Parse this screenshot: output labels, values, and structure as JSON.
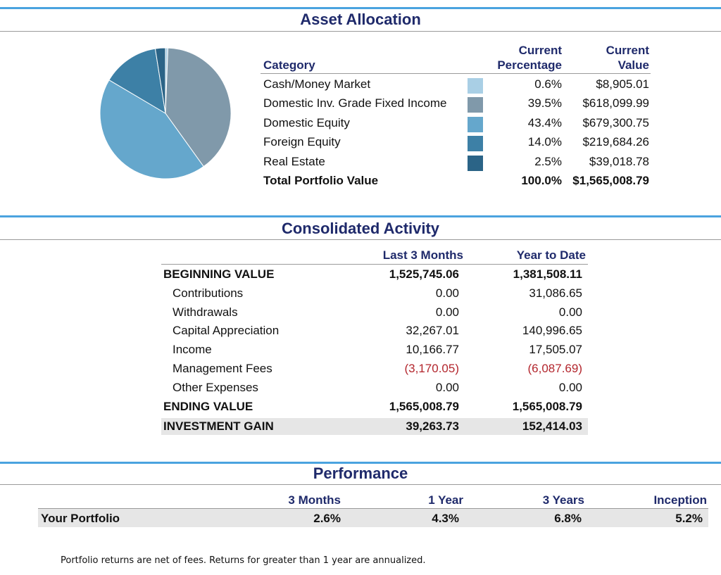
{
  "asset_allocation": {
    "title": "Asset Allocation",
    "headers": {
      "category": "Category",
      "percentage_line1": "Current",
      "percentage_line2": "Percentage",
      "value_line1": "Current",
      "value_line2": "Value"
    },
    "rows": [
      {
        "category": "Cash/Money Market",
        "percentage": "0.6%",
        "value": "$8,905.01",
        "color": "#a9cfe5",
        "share": 0.6
      },
      {
        "category": "Domestic Inv. Grade Fixed Income",
        "percentage": "39.5%",
        "value": "$618,099.99",
        "color": "#8099aa",
        "share": 39.5
      },
      {
        "category": "Domestic Equity",
        "percentage": "43.4%",
        "value": "$679,300.75",
        "color": "#65a7cc",
        "share": 43.4
      },
      {
        "category": "Foreign Equity",
        "percentage": "14.0%",
        "value": "$219,684.26",
        "color": "#3d80a6",
        "share": 14.0
      },
      {
        "category": "Real Estate",
        "percentage": "2.5%",
        "value": "$39,018.78",
        "color": "#2b6487",
        "share": 2.5
      }
    ],
    "total": {
      "label": "Total Portfolio Value",
      "percentage": "100.0%",
      "value": "$1,565,008.79"
    }
  },
  "consolidated_activity": {
    "title": "Consolidated Activity",
    "col1": "Last 3 Months",
    "col2": "Year to Date",
    "rows": [
      {
        "label": "BEGINNING VALUE",
        "v1": "1,525,745.06",
        "v2": "1,381,508.11"
      },
      {
        "label": "Contributions",
        "v1": "0.00",
        "v2": "31,086.65"
      },
      {
        "label": "Withdrawals",
        "v1": "0.00",
        "v2": "0.00"
      },
      {
        "label": "Capital Appreciation",
        "v1": "32,267.01",
        "v2": "140,996.65"
      },
      {
        "label": "Income",
        "v1": "10,166.77",
        "v2": "17,505.07"
      },
      {
        "label": "Management Fees",
        "v1": "(3,170.05)",
        "v2": "(6,087.69)"
      },
      {
        "label": "Other Expenses",
        "v1": "0.00",
        "v2": "0.00"
      },
      {
        "label": "ENDING VALUE",
        "v1": "1,565,008.79",
        "v2": "1,565,008.79"
      },
      {
        "label": "INVESTMENT GAIN",
        "v1": "39,263.73",
        "v2": "152,414.03"
      }
    ]
  },
  "performance": {
    "title": "Performance",
    "headers": [
      "3 Months",
      "1 Year",
      "3 Years",
      "Inception"
    ],
    "row_label": "Your Portfolio",
    "values": [
      "2.6%",
      "4.3%",
      "6.8%",
      "5.2%"
    ],
    "footnote": "Portfolio returns are net of fees.  Returns for greater than 1 year are annualized."
  },
  "colors": {
    "accent_rule": "#4aa3df",
    "title": "#1f2a6b",
    "negative": "#b3262d",
    "highlight_row": "#e6e6e6"
  }
}
